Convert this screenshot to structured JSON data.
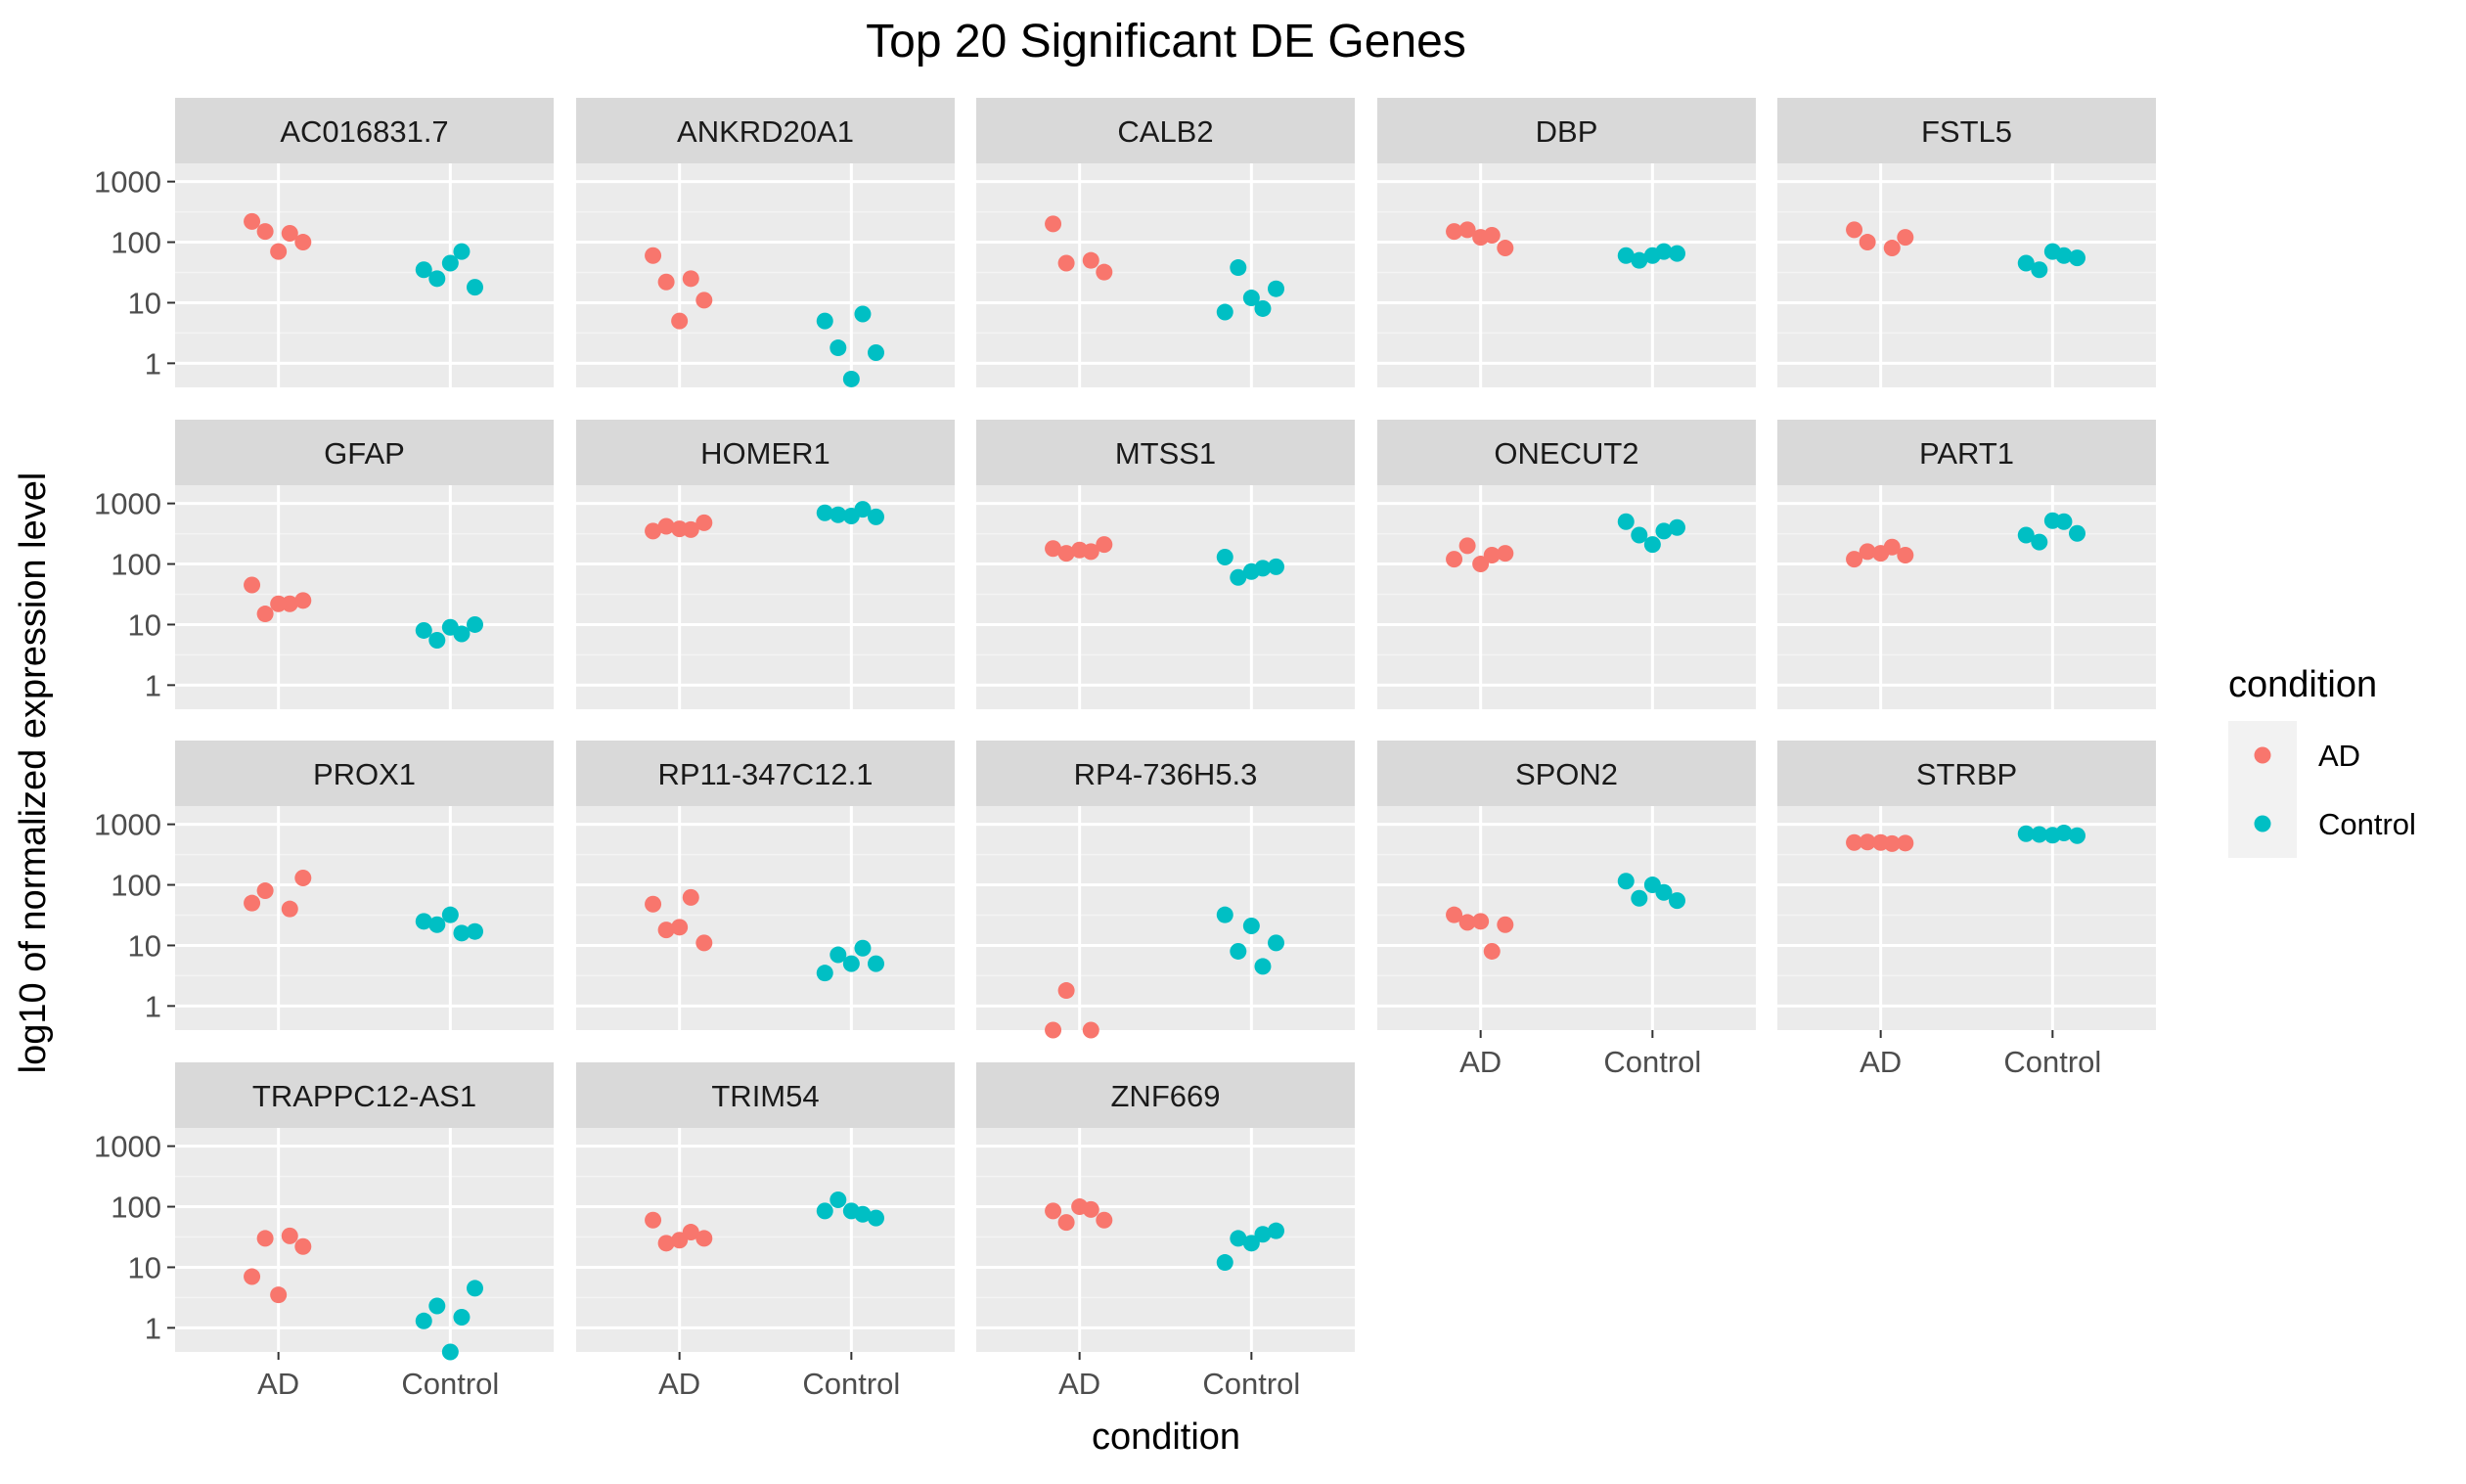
{
  "chart_data": {
    "type": "scatter",
    "title": "Top 20 Significant DE Genes",
    "xlabel": "condition",
    "ylabel": "log10 of normalized expression level",
    "y_scale": "log10",
    "ylim": [
      0.4,
      2000
    ],
    "y_ticks": [
      1,
      10,
      100,
      1000
    ],
    "y_tick_labels": [
      "1",
      "10",
      "100",
      "1000"
    ],
    "categories": [
      "AD",
      "Control"
    ],
    "legend": {
      "title": "condition",
      "position": "right",
      "entries": [
        {
          "name": "AD",
          "color": "#F8766D"
        },
        {
          "name": "Control",
          "color": "#00BFC4"
        }
      ]
    },
    "grid": true,
    "panels": [
      {
        "gene": "AC016831.7",
        "AD": [
          220,
          140,
          150,
          100,
          70
        ],
        "Control": [
          35,
          70,
          25,
          18,
          45
        ]
      },
      {
        "gene": "ANKRD20A1",
        "AD": [
          60,
          25,
          22,
          11,
          5
        ],
        "Control": [
          5,
          6.5,
          1.8,
          1.5,
          0.55
        ]
      },
      {
        "gene": "CALB2",
        "AD": [
          200,
          50,
          45,
          32
        ],
        "Control": [
          7,
          8,
          38,
          17,
          12
        ]
      },
      {
        "gene": "DBP",
        "AD": [
          150,
          130,
          160,
          80,
          120
        ],
        "Control": [
          60,
          70,
          50,
          65,
          60
        ]
      },
      {
        "gene": "FSTL5",
        "AD": [
          160,
          80,
          100,
          120
        ],
        "Control": [
          45,
          60,
          35,
          55,
          70
        ]
      },
      {
        "gene": "GFAP",
        "AD": [
          45,
          22,
          15,
          25,
          22
        ],
        "Control": [
          8,
          7,
          5.5,
          10,
          9
        ]
      },
      {
        "gene": "HOMER1",
        "AD": [
          350,
          370,
          420,
          480,
          380
        ],
        "Control": [
          700,
          800,
          650,
          600,
          620
        ]
      },
      {
        "gene": "MTSS1",
        "AD": [
          180,
          160,
          150,
          210,
          170
        ],
        "Control": [
          130,
          85,
          60,
          90,
          75
        ]
      },
      {
        "gene": "ONECUT2",
        "AD": [
          120,
          140,
          200,
          150,
          100
        ],
        "Control": [
          500,
          350,
          300,
          400,
          210
        ]
      },
      {
        "gene": "PART1",
        "AD": [
          120,
          190,
          160,
          140,
          150
        ],
        "Control": [
          300,
          500,
          230,
          320,
          520
        ]
      },
      {
        "gene": "PROX1",
        "AD": [
          50,
          40,
          80,
          130
        ],
        "Control": [
          25,
          16,
          22,
          17,
          32
        ]
      },
      {
        "gene": "RP11-347C12.1",
        "AD": [
          48,
          62,
          18,
          11,
          20
        ],
        "Control": [
          3.5,
          9,
          7,
          5,
          5
        ]
      },
      {
        "gene": "RP4-736H5.3",
        "AD": [
          0.4,
          0.4,
          1.8
        ],
        "Control": [
          32,
          4.5,
          8,
          11,
          21
        ]
      },
      {
        "gene": "SPON2",
        "AD": [
          32,
          8,
          24,
          22,
          25
        ],
        "Control": [
          115,
          75,
          60,
          55,
          100
        ]
      },
      {
        "gene": "STRBP",
        "AD": [
          500,
          480,
          510,
          490,
          500
        ],
        "Control": [
          700,
          720,
          680,
          650,
          660
        ]
      },
      {
        "gene": "TRAPPC12-AS1",
        "AD": [
          7,
          33,
          30,
          22,
          3.5
        ],
        "Control": [
          1.3,
          1.5,
          2.3,
          4.5,
          0.4
        ]
      },
      {
        "gene": "TRIM54",
        "AD": [
          60,
          38,
          25,
          30,
          28
        ],
        "Control": [
          85,
          75,
          130,
          65,
          85
        ]
      },
      {
        "gene": "ZNF669",
        "AD": [
          85,
          90,
          55,
          60,
          100
        ],
        "Control": [
          12,
          35,
          30,
          40,
          25
        ]
      }
    ]
  }
}
